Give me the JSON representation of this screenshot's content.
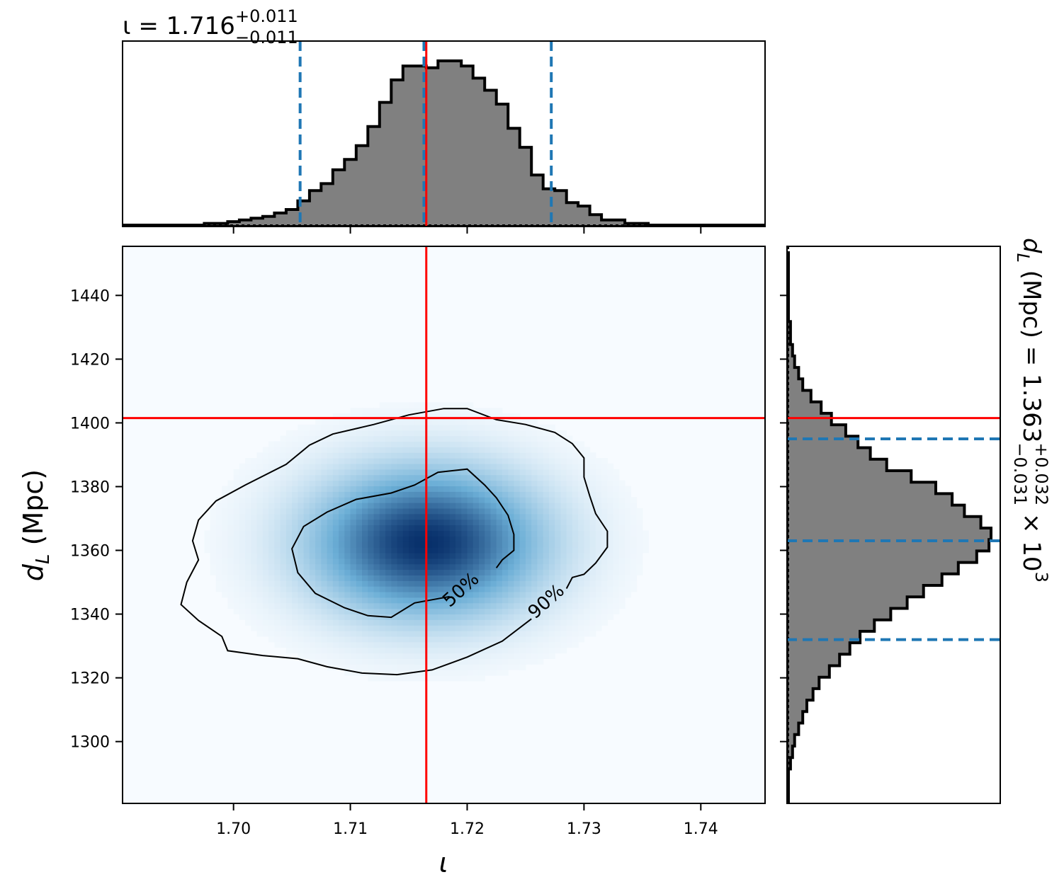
{
  "colors": {
    "truth": "#ff0000",
    "quantile": "#1f77b4",
    "hist_fill": "#808080",
    "hist_edge": "#000000",
    "density_low": "#f7fbff",
    "density_high": "#08306b"
  },
  "top_title": {
    "main": "ι = 1.716",
    "sup": "+0.011",
    "sub": "−0.011"
  },
  "right_title": {
    "main": "d",
    "main_sub": "L",
    "rest": " (Mpc) = 1.363",
    "sup": "+0.032",
    "sub": "−0.031",
    "tail": " × 10",
    "tail_sup": "3"
  },
  "chart_data": [
    {
      "type": "heatmap",
      "panel": "joint",
      "xlabel": "ι",
      "ylabel_main": "d",
      "ylabel_sub": "L",
      "ylabel_rest": " (Mpc)",
      "xlim": [
        1.6905,
        1.7455
      ],
      "ylim": [
        1280.6,
        1455.4
      ],
      "xticks": [
        1.7,
        1.71,
        1.72,
        1.73,
        1.74
      ],
      "xtick_labels": [
        "1.70",
        "1.71",
        "1.72",
        "1.73",
        "1.74"
      ],
      "yticks": [
        1300,
        1320,
        1340,
        1360,
        1380,
        1400,
        1420,
        1440
      ],
      "ytick_labels": [
        "1300",
        "1320",
        "1340",
        "1360",
        "1380",
        "1400",
        "1420",
        "1440"
      ],
      "density_peak": {
        "x": 1.7165,
        "y": 1362.5,
        "sigma_x": 0.0062,
        "sigma_y": 14.5
      },
      "truth": {
        "x": 1.7165,
        "y": 1401.5
      },
      "contours": [
        {
          "label": "50%",
          "label_pos": {
            "x": 1.7195,
            "y": 1347.5,
            "angle": -42
          },
          "points": [
            [
              1.7185,
              1345.5
            ],
            [
              1.7155,
              1343.5
            ],
            [
              1.7135,
              1339.0
            ],
            [
              1.7115,
              1339.5
            ],
            [
              1.7095,
              1342.0
            ],
            [
              1.707,
              1346.5
            ],
            [
              1.7055,
              1353.0
            ],
            [
              1.705,
              1360.5
            ],
            [
              1.706,
              1367.5
            ],
            [
              1.708,
              1372.0
            ],
            [
              1.7105,
              1376.0
            ],
            [
              1.7135,
              1378.0
            ],
            [
              1.7155,
              1380.5
            ],
            [
              1.7175,
              1384.5
            ],
            [
              1.72,
              1385.5
            ],
            [
              1.7215,
              1380.5
            ],
            [
              1.7225,
              1376.5
            ],
            [
              1.7235,
              1371.0
            ],
            [
              1.724,
              1365.0
            ],
            [
              1.724,
              1360.0
            ],
            [
              1.723,
              1357.0
            ],
            [
              1.7225,
              1354.5
            ]
          ]
        },
        {
          "label": "90%",
          "label_pos": {
            "x": 1.7268,
            "y": 1343.8,
            "angle": -42
          },
          "points": [
            [
              1.7255,
              1338.5
            ],
            [
              1.723,
              1331.5
            ],
            [
              1.72,
              1326.5
            ],
            [
              1.717,
              1322.5
            ],
            [
              1.714,
              1321.0
            ],
            [
              1.711,
              1321.5
            ],
            [
              1.708,
              1323.5
            ],
            [
              1.7055,
              1326.0
            ],
            [
              1.7025,
              1327.0
            ],
            [
              1.6995,
              1328.5
            ],
            [
              1.699,
              1333.0
            ],
            [
              1.697,
              1338.0
            ],
            [
              1.6955,
              1343.0
            ],
            [
              1.696,
              1350.0
            ],
            [
              1.697,
              1357.0
            ],
            [
              1.6965,
              1363.0
            ],
            [
              1.697,
              1369.5
            ],
            [
              1.6985,
              1375.5
            ],
            [
              1.701,
              1380.5
            ],
            [
              1.7045,
              1387.0
            ],
            [
              1.7065,
              1393.0
            ],
            [
              1.7085,
              1396.5
            ],
            [
              1.712,
              1399.5
            ],
            [
              1.715,
              1402.5
            ],
            [
              1.718,
              1404.5
            ],
            [
              1.72,
              1404.5
            ],
            [
              1.7225,
              1401.0
            ],
            [
              1.725,
              1399.5
            ],
            [
              1.7275,
              1397.0
            ],
            [
              1.729,
              1393.5
            ],
            [
              1.73,
              1389.0
            ],
            [
              1.73,
              1383.0
            ],
            [
              1.7305,
              1377.0
            ],
            [
              1.731,
              1371.5
            ],
            [
              1.732,
              1366.0
            ],
            [
              1.732,
              1361.0
            ],
            [
              1.731,
              1356.0
            ],
            [
              1.73,
              1352.5
            ],
            [
              1.729,
              1351.5
            ],
            [
              1.7285,
              1348.0
            ]
          ]
        }
      ]
    },
    {
      "type": "histogram",
      "panel": "top-marginal",
      "parameter": "ι",
      "edge_start": 1.6905,
      "bin_width": 0.001,
      "counts": [
        0,
        0,
        0,
        0,
        0,
        0,
        0,
        1,
        1,
        2,
        3,
        4,
        5,
        7,
        9,
        14,
        20,
        24,
        32,
        38,
        46,
        57,
        71,
        84,
        92,
        92,
        91,
        95,
        95,
        92,
        85,
        78,
        70,
        56,
        45,
        29,
        21,
        20,
        13,
        11,
        6,
        3,
        3,
        1,
        1,
        0,
        0,
        0,
        0,
        0,
        0,
        0,
        0,
        0,
        0
      ],
      "median": 1.7163,
      "lower": 1.7057,
      "upper": 1.7272,
      "truth": 1.7165
    },
    {
      "type": "histogram",
      "panel": "right-marginal",
      "parameter": "d_L (Mpc)",
      "edge_start": 1280.6,
      "bin_width": 3.6,
      "counts": [
        0,
        0,
        0,
        1,
        2,
        3,
        5,
        7,
        9,
        12,
        15,
        20,
        25,
        30,
        35,
        42,
        50,
        58,
        66,
        75,
        83,
        92,
        98,
        99,
        94,
        86,
        80,
        72,
        60,
        48,
        40,
        34,
        28,
        21,
        16,
        11,
        7,
        5,
        3,
        2,
        1,
        1,
        0,
        0,
        0,
        0,
        0,
        0
      ],
      "median": 1363,
      "lower": 1332,
      "upper": 1395,
      "truth": 1401.5
    }
  ]
}
